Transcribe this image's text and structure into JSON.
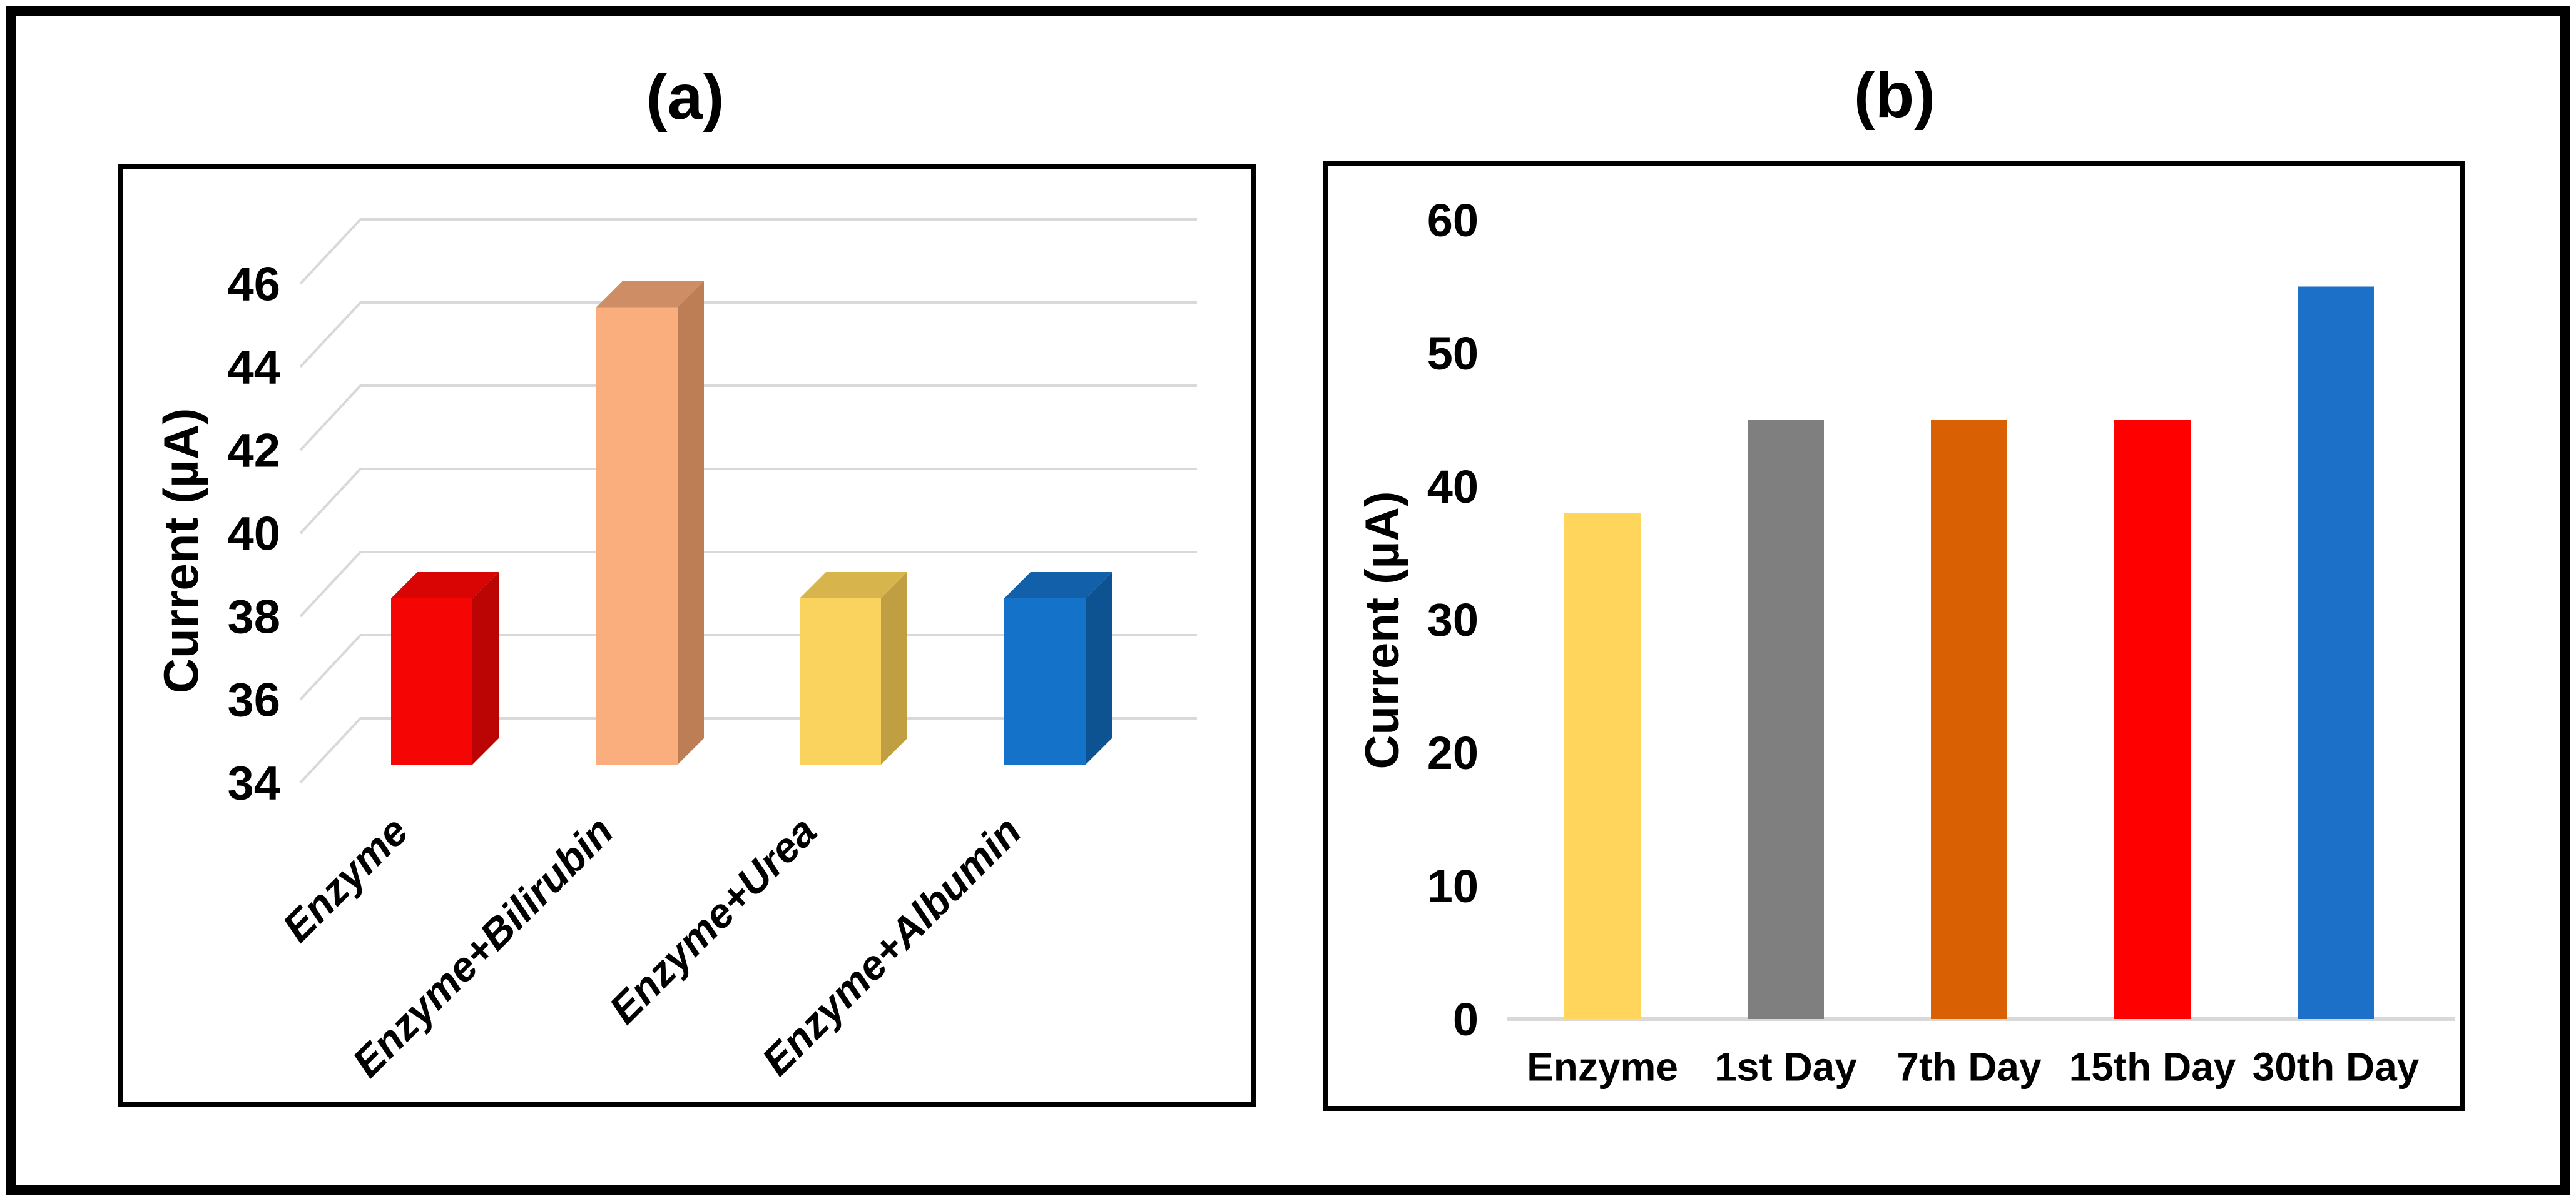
{
  "figure": {
    "panel_a_title": "(a)",
    "panel_b_title": "(b)"
  },
  "chart_data": [
    {
      "id": "a",
      "type": "bar",
      "style": "3d-column",
      "title": "(a)",
      "xlabel": "",
      "ylabel": "Current (µA)",
      "categories": [
        "Enzyme",
        "Enzyme+Bilirubin",
        "Enzyme+Urea",
        "Enzyme+Albumin"
      ],
      "values": [
        38,
        45,
        38,
        38
      ],
      "ylim": [
        34,
        46
      ],
      "ytick_step": 2,
      "yticks": [
        34,
        36,
        38,
        40,
        42,
        44,
        46
      ],
      "grid": true,
      "gridline_color": "#D9D9D9",
      "legend": "none",
      "bar_colors_front": [
        "#F60505",
        "#FBAE7D",
        "#FAD35E",
        "#1473C9"
      ],
      "bar_colors_top": [
        "#D90404",
        "#CE8D64",
        "#D8B44C",
        "#1160A9"
      ],
      "bar_colors_side": [
        "#BB0404",
        "#BD7E55",
        "#C09F42",
        "#0E5391"
      ]
    },
    {
      "id": "b",
      "type": "bar",
      "style": "flat-column",
      "title": "(b)",
      "xlabel": "",
      "ylabel": "Current (µA)",
      "categories": [
        "Enzyme",
        "1st Day",
        "7th Day",
        "15th Day",
        "30th Day"
      ],
      "values": [
        38,
        45,
        45,
        45,
        55
      ],
      "ylim": [
        0,
        60
      ],
      "ytick_step": 10,
      "yticks": [
        0,
        10,
        20,
        30,
        40,
        50,
        60
      ],
      "grid": false,
      "baseline_color": "#D9D9D9",
      "legend": "none",
      "bar_colors": [
        "#FFD55C",
        "#7F7F7F",
        "#DA6004",
        "#FF0000",
        "#1D70C8"
      ]
    }
  ]
}
